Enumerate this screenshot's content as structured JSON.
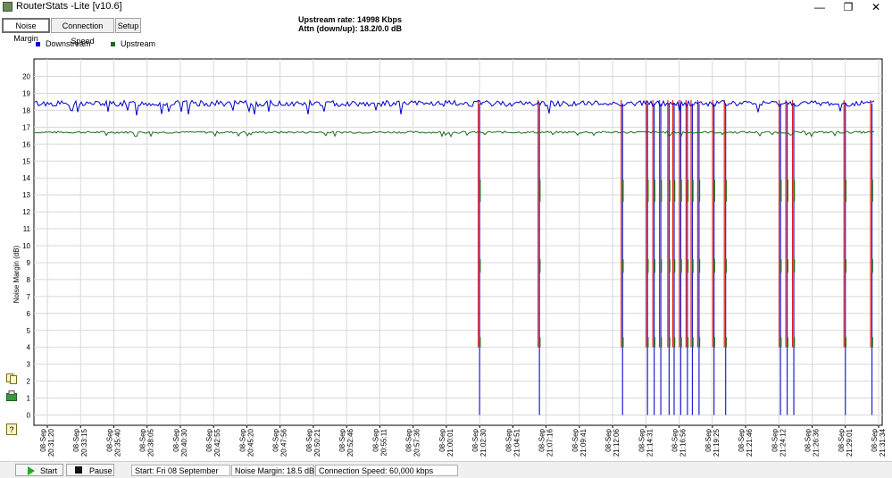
{
  "window": {
    "title": "RouterStats -Lite [v10.6]",
    "minimize_glyph": "—",
    "restore_glyph": "❐",
    "close_glyph": "✕"
  },
  "tabs": [
    {
      "label": "Noise Margin",
      "active": true
    },
    {
      "label": "Connection Speed",
      "active": false
    },
    {
      "label": "Setup",
      "active": false
    }
  ],
  "header": {
    "upstream_rate": "Upstream rate: 14998 Kbps",
    "attn": "Attn (down/up): 18.2/0.0 dB"
  },
  "side_icons": [
    "copy-icon",
    "export-icon",
    "help-icon"
  ],
  "chart_data": {
    "type": "line",
    "ylabel": "Noise Margin (dB)",
    "xlabel": "",
    "ylim": [
      0,
      20
    ],
    "yticks": [
      "0",
      "1",
      "2",
      "3",
      "4",
      "5",
      "6",
      "7",
      "8",
      "9",
      "10",
      "11",
      "12",
      "13",
      "14",
      "15",
      "16",
      "17",
      "18",
      "19",
      "20"
    ],
    "grid": true,
    "legend_position": "top-left",
    "x_categories": [
      "08-Sep 20:31:20",
      "08-Sep 20:33:15",
      "08-Sep 20:35:40",
      "08-Sep 20:38:05",
      "08-Sep 20:40:30",
      "08-Sep 20:42:55",
      "08-Sep 20:45:20",
      "08-Sep 20:47:56",
      "08-Sep 20:50:21",
      "08-Sep 20:52:46",
      "08-Sep 20:55:11",
      "08-Sep 20:57:36",
      "08-Sep 21:00:01",
      "08-Sep 21:02:30",
      "08-Sep 21:04:51",
      "08-Sep 21:07:16",
      "08-Sep 21:09:41",
      "08-Sep 21:12:06",
      "08-Sep 21:14:31",
      "08-Sep 21:16:56",
      "08-Sep 21:19:25",
      "08-Sep 21:21:46",
      "08-Sep 21:24:12",
      "08-Sep 21:26:36",
      "08-Sep 21:29:01",
      "08-Sep 21:31:34"
    ],
    "series": [
      {
        "name": "Downstream",
        "color": "#0000cc",
        "typical_value": 18.4
      },
      {
        "name": "Upstream",
        "color": "#1f6b1f",
        "typical_value": 16.7
      }
    ],
    "drop_events": [
      {
        "x_position": 13.0,
        "downstream_min": 0
      },
      {
        "x_position": 14.8,
        "downstream_min": 0
      },
      {
        "x_position": 17.3,
        "downstream_min": 0
      },
      {
        "x_position": 18.05,
        "downstream_min": 0
      },
      {
        "x_position": 18.25,
        "downstream_min": 0
      },
      {
        "x_position": 18.45,
        "downstream_min": 0
      },
      {
        "x_position": 18.7,
        "downstream_min": 0
      },
      {
        "x_position": 18.85,
        "downstream_min": 0
      },
      {
        "x_position": 19.05,
        "downstream_min": 0
      },
      {
        "x_position": 19.25,
        "downstream_min": 0
      },
      {
        "x_position": 19.4,
        "downstream_min": 0
      },
      {
        "x_position": 19.6,
        "downstream_min": 0
      },
      {
        "x_position": 20.05,
        "downstream_min": 0
      },
      {
        "x_position": 20.4,
        "downstream_min": 0
      },
      {
        "x_position": 22.05,
        "downstream_min": 0
      },
      {
        "x_position": 22.25,
        "downstream_min": 0
      },
      {
        "x_position": 22.45,
        "downstream_min": 0
      },
      {
        "x_position": 24.0,
        "downstream_min": 0
      },
      {
        "x_position": 24.8,
        "downstream_min": 0
      }
    ]
  },
  "bottom": {
    "start_button": "Start",
    "pause_button": "Pause",
    "start_info": "Start: Fri 08 September",
    "noise_margin": "Noise Margin: 18.5 dB",
    "connection_speed": "Connection Speed: 60,000 kbps"
  }
}
